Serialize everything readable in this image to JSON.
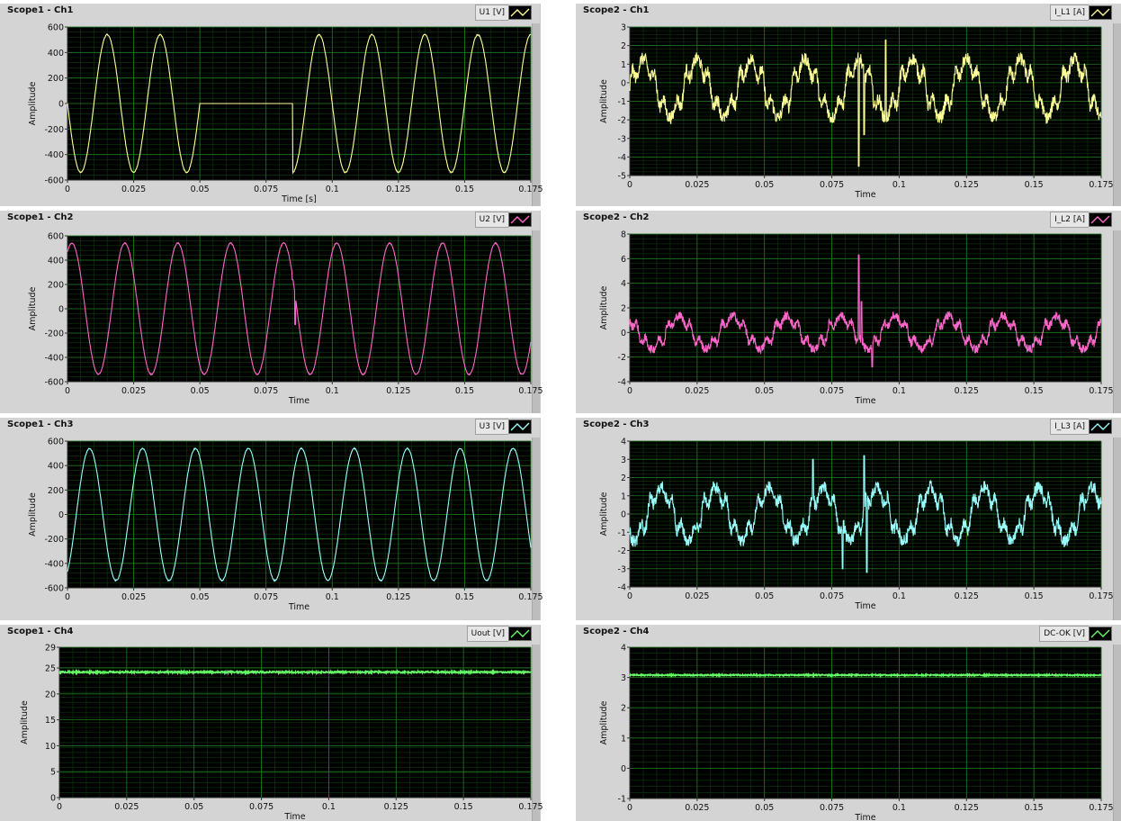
{
  "colors": {
    "panel_bg": "#d4d4d4",
    "plot_bg": "#000000",
    "grid_major": "#1f7a1f",
    "grid_minor": "#0c3a0c",
    "yellow_trace": "#ffff99",
    "pink_trace": "#ff66cc",
    "cyan_trace": "#99ffff",
    "green_trace": "#66ff66"
  },
  "panels": [
    {
      "id": "s1c1",
      "title": "Scope1 - Ch1",
      "legend": "U1 [V]",
      "trace_color": "#ffff99",
      "y_axis_label": "Amplitude",
      "x_axis_label": "Time [s]",
      "x_ticks": [
        "0",
        "0.025",
        "0.05",
        "0.075",
        "0.1",
        "0.125",
        "0.15",
        "0.175"
      ],
      "y_ticks": [
        "600",
        "400",
        "200",
        "0",
        "-200",
        "-400",
        "-600"
      ],
      "chart_data": {
        "type": "line",
        "xlim": [
          0,
          0.175
        ],
        "ylim": [
          -600,
          600
        ],
        "grid": true,
        "series": [
          {
            "waveform": "sine",
            "amplitude": 540,
            "frequency_hz": 50,
            "phase_deg": 180,
            "noise": 8,
            "dropout": {
              "from": 0.05,
              "to": 0.085,
              "value": 0
            }
          }
        ]
      }
    },
    {
      "id": "s2c1",
      "title": "Scope2 - Ch1",
      "legend": "I_L1 [A]",
      "trace_color": "#ffff99",
      "y_axis_label": "Amplitude",
      "x_axis_label": "Time",
      "x_ticks": [
        "0",
        "0.025",
        "0.05",
        "0.075",
        "0.1",
        "0.125",
        "0.15",
        "0.175"
      ],
      "y_ticks": [
        "3",
        "2",
        "1",
        "0",
        "-1",
        "-2",
        "-3",
        "-4",
        "-5"
      ],
      "chart_data": {
        "type": "line",
        "xlim": [
          0,
          0.175
        ],
        "ylim": [
          -5,
          3
        ],
        "grid": true,
        "series": [
          {
            "waveform": "distorted-sine",
            "amplitude": 1.4,
            "offset": -0.3,
            "frequency_hz": 50,
            "phase_deg": 0,
            "noise": 0.35,
            "events": [
              {
                "t": 0.085,
                "value": -4.5
              },
              {
                "t": 0.087,
                "value": -2.8
              },
              {
                "t": 0.095,
                "value": 2.3
              }
            ]
          }
        ]
      }
    },
    {
      "id": "s1c2",
      "title": "Scope1 - Ch2",
      "legend": "U2 [V]",
      "trace_color": "#ff66cc",
      "y_axis_label": "Amplitude",
      "x_axis_label": "Time",
      "x_ticks": [
        "0",
        "0.025",
        "0.05",
        "0.075",
        "0.1",
        "0.125",
        "0.15",
        "0.175"
      ],
      "y_ticks": [
        "600",
        "400",
        "200",
        "0",
        "-200",
        "-400",
        "-600"
      ],
      "chart_data": {
        "type": "line",
        "xlim": [
          0,
          0.175
        ],
        "ylim": [
          -600,
          600
        ],
        "grid": true,
        "series": [
          {
            "waveform": "sine",
            "amplitude": 540,
            "frequency_hz": 50,
            "phase_deg": 60,
            "noise": 8,
            "events": [
              {
                "t": 0.085,
                "value": 240
              },
              {
                "t": 0.086,
                "value": -130
              }
            ]
          }
        ]
      }
    },
    {
      "id": "s2c2",
      "title": "Scope2 - Ch2",
      "legend": "I_L2 [A]",
      "trace_color": "#ff66cc",
      "y_axis_label": "Amplitude",
      "x_axis_label": "Time",
      "x_ticks": [
        "0",
        "0.025",
        "0.05",
        "0.075",
        "0.1",
        "0.125",
        "0.15",
        "0.175"
      ],
      "y_ticks": [
        "8",
        "6",
        "4",
        "2",
        "0",
        "-2",
        "-4"
      ],
      "chart_data": {
        "type": "line",
        "xlim": [
          0,
          0.175
        ],
        "ylim": [
          -4,
          8
        ],
        "grid": true,
        "series": [
          {
            "waveform": "distorted-sine",
            "amplitude": 1.2,
            "offset": 0,
            "frequency_hz": 50,
            "phase_deg": 120,
            "noise": 0.35,
            "events": [
              {
                "t": 0.085,
                "value": 6.3
              },
              {
                "t": 0.086,
                "value": 2.5
              },
              {
                "t": 0.09,
                "value": -2.8
              }
            ]
          }
        ]
      }
    },
    {
      "id": "s1c3",
      "title": "Scope1 - Ch3",
      "legend": "U3 [V]",
      "trace_color": "#99ffff",
      "y_axis_label": "Amplitude",
      "x_axis_label": "Time",
      "x_ticks": [
        "0",
        "0.025",
        "0.05",
        "0.075",
        "0.1",
        "0.125",
        "0.15",
        "0.175"
      ],
      "y_ticks": [
        "600",
        "400",
        "200",
        "0",
        "-200",
        "-400",
        "-600"
      ],
      "chart_data": {
        "type": "line",
        "xlim": [
          0,
          0.175
        ],
        "ylim": [
          -600,
          600
        ],
        "grid": true,
        "series": [
          {
            "waveform": "sine",
            "amplitude": 540,
            "frequency_hz": 50,
            "phase_deg": -60,
            "noise": 8
          }
        ]
      }
    },
    {
      "id": "s2c3",
      "title": "Scope2 - Ch3",
      "legend": "I_L3 [A]",
      "trace_color": "#99ffff",
      "y_axis_label": "Amplitude",
      "x_axis_label": "Time",
      "x_ticks": [
        "0",
        "0.025",
        "0.05",
        "0.075",
        "0.1",
        "0.125",
        "0.15",
        "0.175"
      ],
      "y_ticks": [
        "4",
        "3",
        "2",
        "1",
        "0",
        "-1",
        "-2",
        "-3",
        "-4"
      ],
      "chart_data": {
        "type": "line",
        "xlim": [
          0,
          0.175
        ],
        "ylim": [
          -4,
          4
        ],
        "grid": true,
        "series": [
          {
            "waveform": "distorted-sine",
            "amplitude": 1.3,
            "offset": 0,
            "frequency_hz": 50,
            "phase_deg": -120,
            "noise": 0.35,
            "events": [
              {
                "t": 0.068,
                "value": 3.0
              },
              {
                "t": 0.079,
                "value": -3.0
              },
              {
                "t": 0.087,
                "value": 3.2
              },
              {
                "t": 0.088,
                "value": -3.2
              }
            ]
          }
        ]
      }
    },
    {
      "id": "s1c4",
      "title": "Scope1 - Ch4",
      "legend": "Uout [V]",
      "trace_color": "#66ff66",
      "y_axis_label": "Amplitude",
      "x_axis_label": "Time",
      "x_ticks": [
        "0",
        "0.025",
        "0.05",
        "0.075",
        "0.1",
        "0.125",
        "0.15",
        "0.175"
      ],
      "y_ticks": [
        "29",
        "25",
        "20",
        "15",
        "10",
        "5",
        "0"
      ],
      "y_tick_values": [
        29,
        25,
        20,
        15,
        10,
        5,
        0
      ],
      "chart_data": {
        "type": "line",
        "xlim": [
          0,
          0.175
        ],
        "ylim": [
          0,
          29
        ],
        "grid": true,
        "series": [
          {
            "waveform": "dc",
            "value": 24.2,
            "noise": 0.15
          }
        ]
      }
    },
    {
      "id": "s2c4",
      "title": "Scope2 - Ch4",
      "legend": "DC-OK [V]",
      "trace_color": "#66ff66",
      "y_axis_label": "Amplitude",
      "x_axis_label": "Time",
      "x_ticks": [
        "0",
        "0.025",
        "0.05",
        "0.075",
        "0.1",
        "0.125",
        "0.15",
        "0.175"
      ],
      "y_ticks": [
        "4",
        "3",
        "2",
        "1",
        "0",
        "-1"
      ],
      "chart_data": {
        "type": "line",
        "xlim": [
          0,
          0.175
        ],
        "ylim": [
          -1,
          4
        ],
        "grid": true,
        "series": [
          {
            "waveform": "dc",
            "value": 3.08,
            "noise": 0.02
          }
        ]
      }
    }
  ]
}
